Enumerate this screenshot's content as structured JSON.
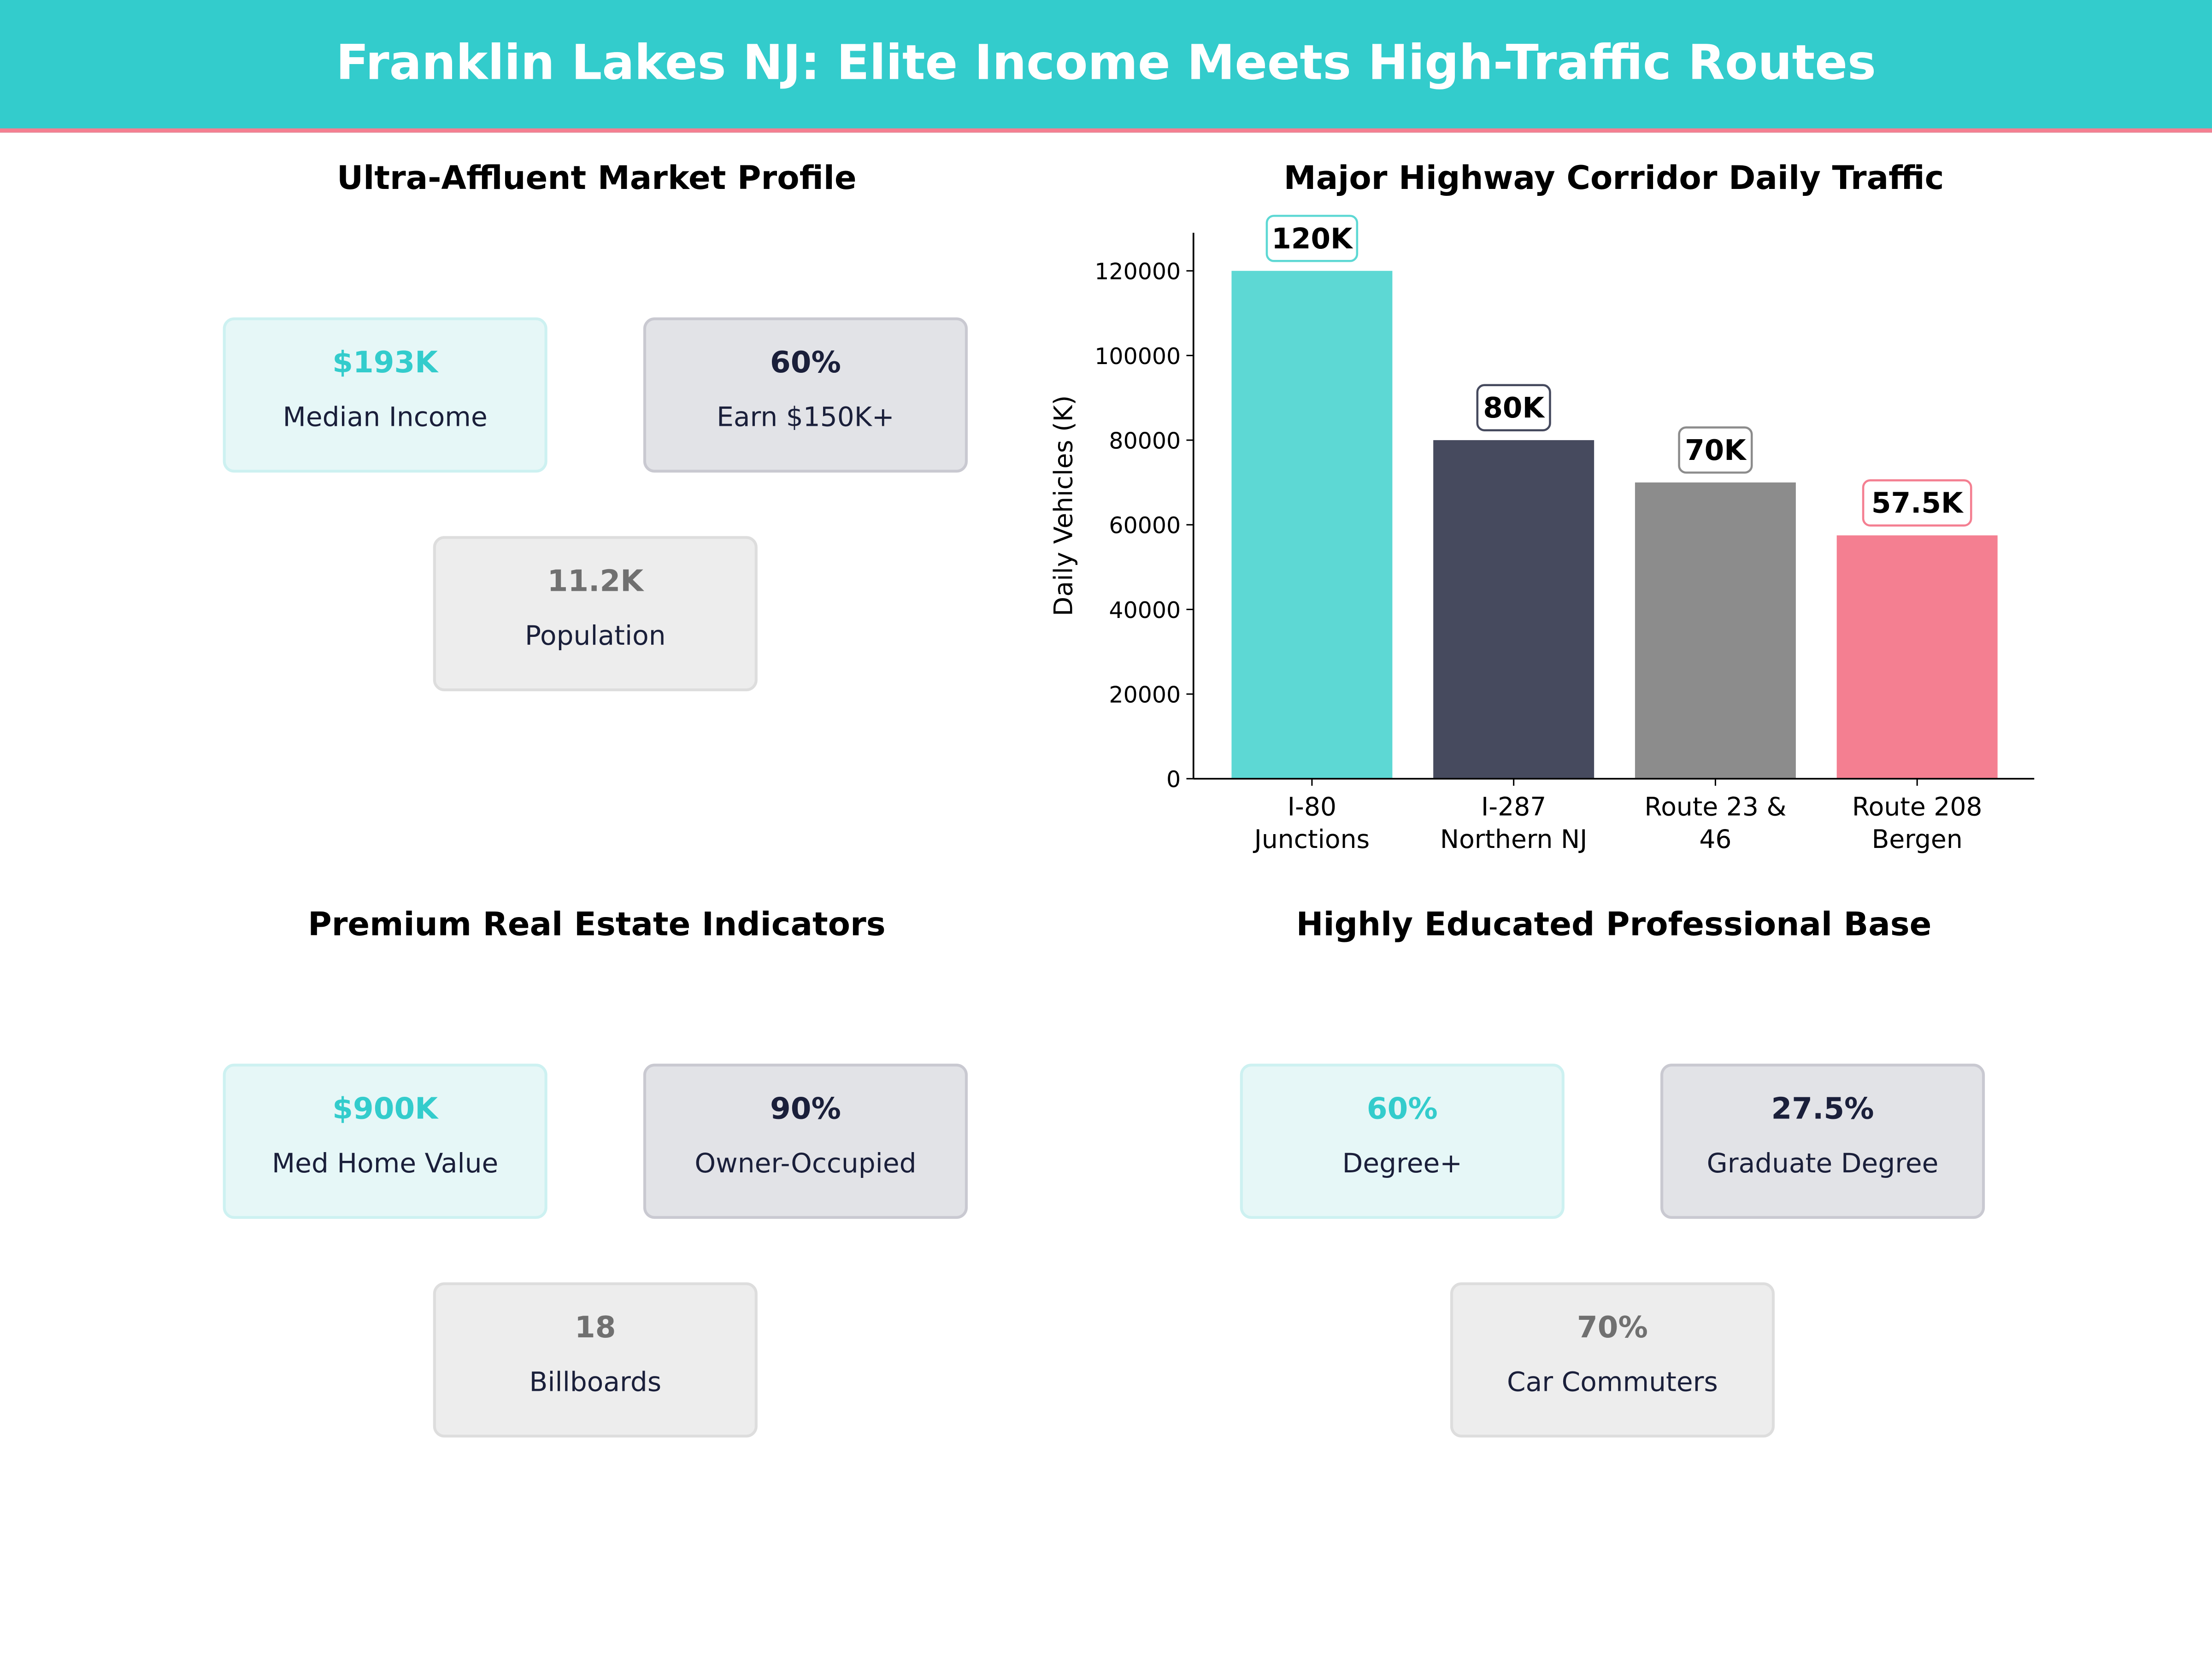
{
  "header": {
    "title": "Franklin Lakes NJ: Elite Income Meets High-Traffic Routes"
  },
  "panels": [
    {
      "title": "Ultra-Affluent Market Profile",
      "cards": [
        {
          "value": "$193K",
          "label": "Median Income"
        },
        {
          "value": "60%",
          "label": "Earn $150K+"
        },
        {
          "value": "11.2K",
          "label": "Population"
        }
      ]
    },
    {
      "title": "Premium Real Estate Indicators",
      "cards": [
        {
          "value": "$900K",
          "label": "Med Home Value"
        },
        {
          "value": "90%",
          "label": "Owner-Occupied"
        },
        {
          "value": "18",
          "label": "Billboards"
        }
      ]
    },
    {
      "title": "Highly Educated Professional Base",
      "cards": [
        {
          "value": "60%",
          "label": "Degree+"
        },
        {
          "value": "27.5%",
          "label": "Graduate Degree"
        },
        {
          "value": "70%",
          "label": "Car Commuters"
        }
      ]
    }
  ],
  "chart_data": {
    "type": "bar",
    "title": "Major Highway Corridor Daily Traffic",
    "xlabel": "",
    "ylabel": "Daily Vehicles (K)",
    "categories": [
      [
        "I-80",
        "Junctions"
      ],
      [
        "I-287",
        "Northern NJ"
      ],
      [
        "Route 23 &",
        "46"
      ],
      [
        "Route 208",
        "Bergen"
      ]
    ],
    "values": [
      120000,
      80000,
      70000,
      57500
    ],
    "data_labels": [
      "120K",
      "80K",
      "70K",
      "57.5K"
    ],
    "colors": [
      "#5dd8d4",
      "#464a5e",
      "#8c8c8c",
      "#f47f91"
    ],
    "ylim": [
      0,
      129000
    ],
    "yticks": [
      0,
      20000,
      40000,
      60000,
      80000,
      100000,
      120000
    ],
    "grid": false
  }
}
